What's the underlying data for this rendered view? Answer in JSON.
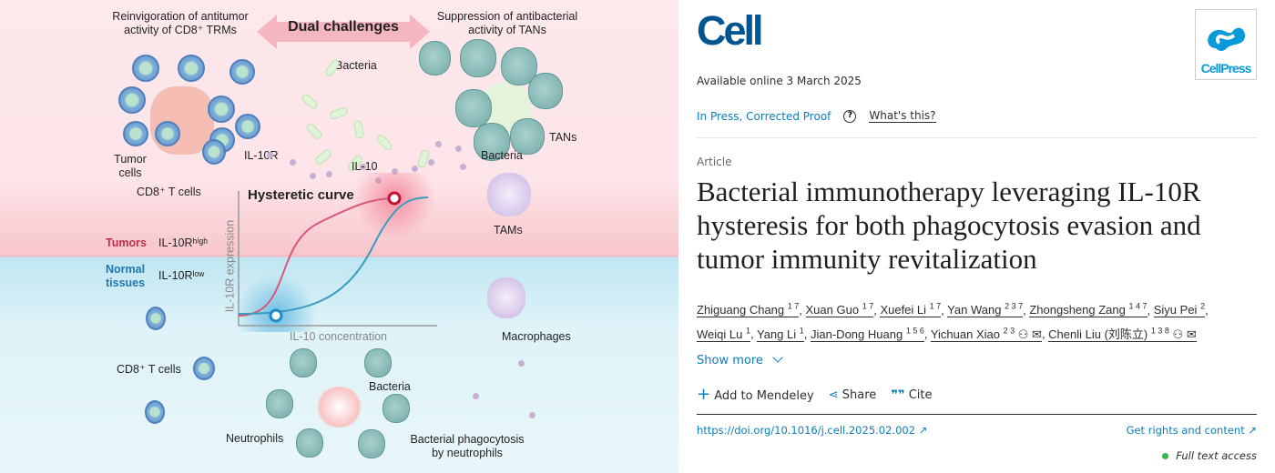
{
  "figure": {
    "top_left": "Reinvigoration of antitumor activity of CD8⁺ TRMs",
    "dual": "Dual challenges",
    "top_right": "Suppression of antibacterial activity of TANs",
    "bacteria_top": "Bacteria",
    "tumor_cells": "Tumor cells",
    "il10r": "IL-10R",
    "il10": "IL-10",
    "cd8_top": "CD8⁺ T cells",
    "tans": "TANs",
    "bacteria_tans": "Bacteria",
    "tams": "TAMs",
    "curve_title": "Hysteretic curve",
    "y_axis": "IL-10R expression",
    "x_axis": "IL-10 concentration",
    "tumors": "Tumors",
    "il10r_high": "IL-10Rʰⁱᵍʰ",
    "normal": "Normal tissues",
    "il10r_low": "IL-10Rˡᵒʷ",
    "macrophages": "Macrophages",
    "cd8_bottom": "CD8⁺ T cells",
    "bacteria_bottom": "Bacteria",
    "neutrophils": "Neutrophils",
    "phago": "Bacterial phagocytosis by neutrophils",
    "colors": {
      "tumor_red": "#c0304a",
      "normal_blue": "#1f77b4",
      "curve_red": "#d9577a",
      "curve_blue": "#3b9cc0"
    }
  },
  "journal": {
    "logo": "Cell",
    "publisher": "CellPress",
    "brand_color": "#00548f",
    "publisher_color": "#0a99d8"
  },
  "meta": {
    "available": "Available online 3 March 2025",
    "status": "In Press, Corrected Proof",
    "help_icon": "question-circle",
    "whats_this": "What's this?",
    "type": "Article"
  },
  "title": "Bacterial immunotherapy leveraging IL-10R hysteresis for both phagocytosis evasion and tumor immunity revitalization",
  "authors": [
    {
      "name": "Zhiguang Chang",
      "sup": "1 7"
    },
    {
      "name": "Xuan Guo",
      "sup": "1 7"
    },
    {
      "name": "Xuefei Li",
      "sup": "1 7"
    },
    {
      "name": "Yan Wang",
      "sup": "2 3 7"
    },
    {
      "name": "Zhongsheng Zang",
      "sup": "1 4 7"
    },
    {
      "name": "Siyu Pei",
      "sup": "2"
    },
    {
      "name": "Weiqi Lu",
      "sup": "1"
    },
    {
      "name": "Yang Li",
      "sup": "1"
    },
    {
      "name": "Jian-Dong Huang",
      "sup": "1 5 6"
    },
    {
      "name": "Yichuan Xiao",
      "sup": "2 3"
    },
    {
      "name": "Chenli Liu (刘陈立)",
      "sup": "1 3 8"
    }
  ],
  "actions": {
    "show_more": "Show more",
    "mendeley": "Add to Mendeley",
    "share": "Share",
    "cite": "Cite"
  },
  "doi": "https://doi.org/10.1016/j.cell.2025.02.002",
  "rights": "Get rights and content",
  "access": "Full text access",
  "access_color": "#3ab54a"
}
